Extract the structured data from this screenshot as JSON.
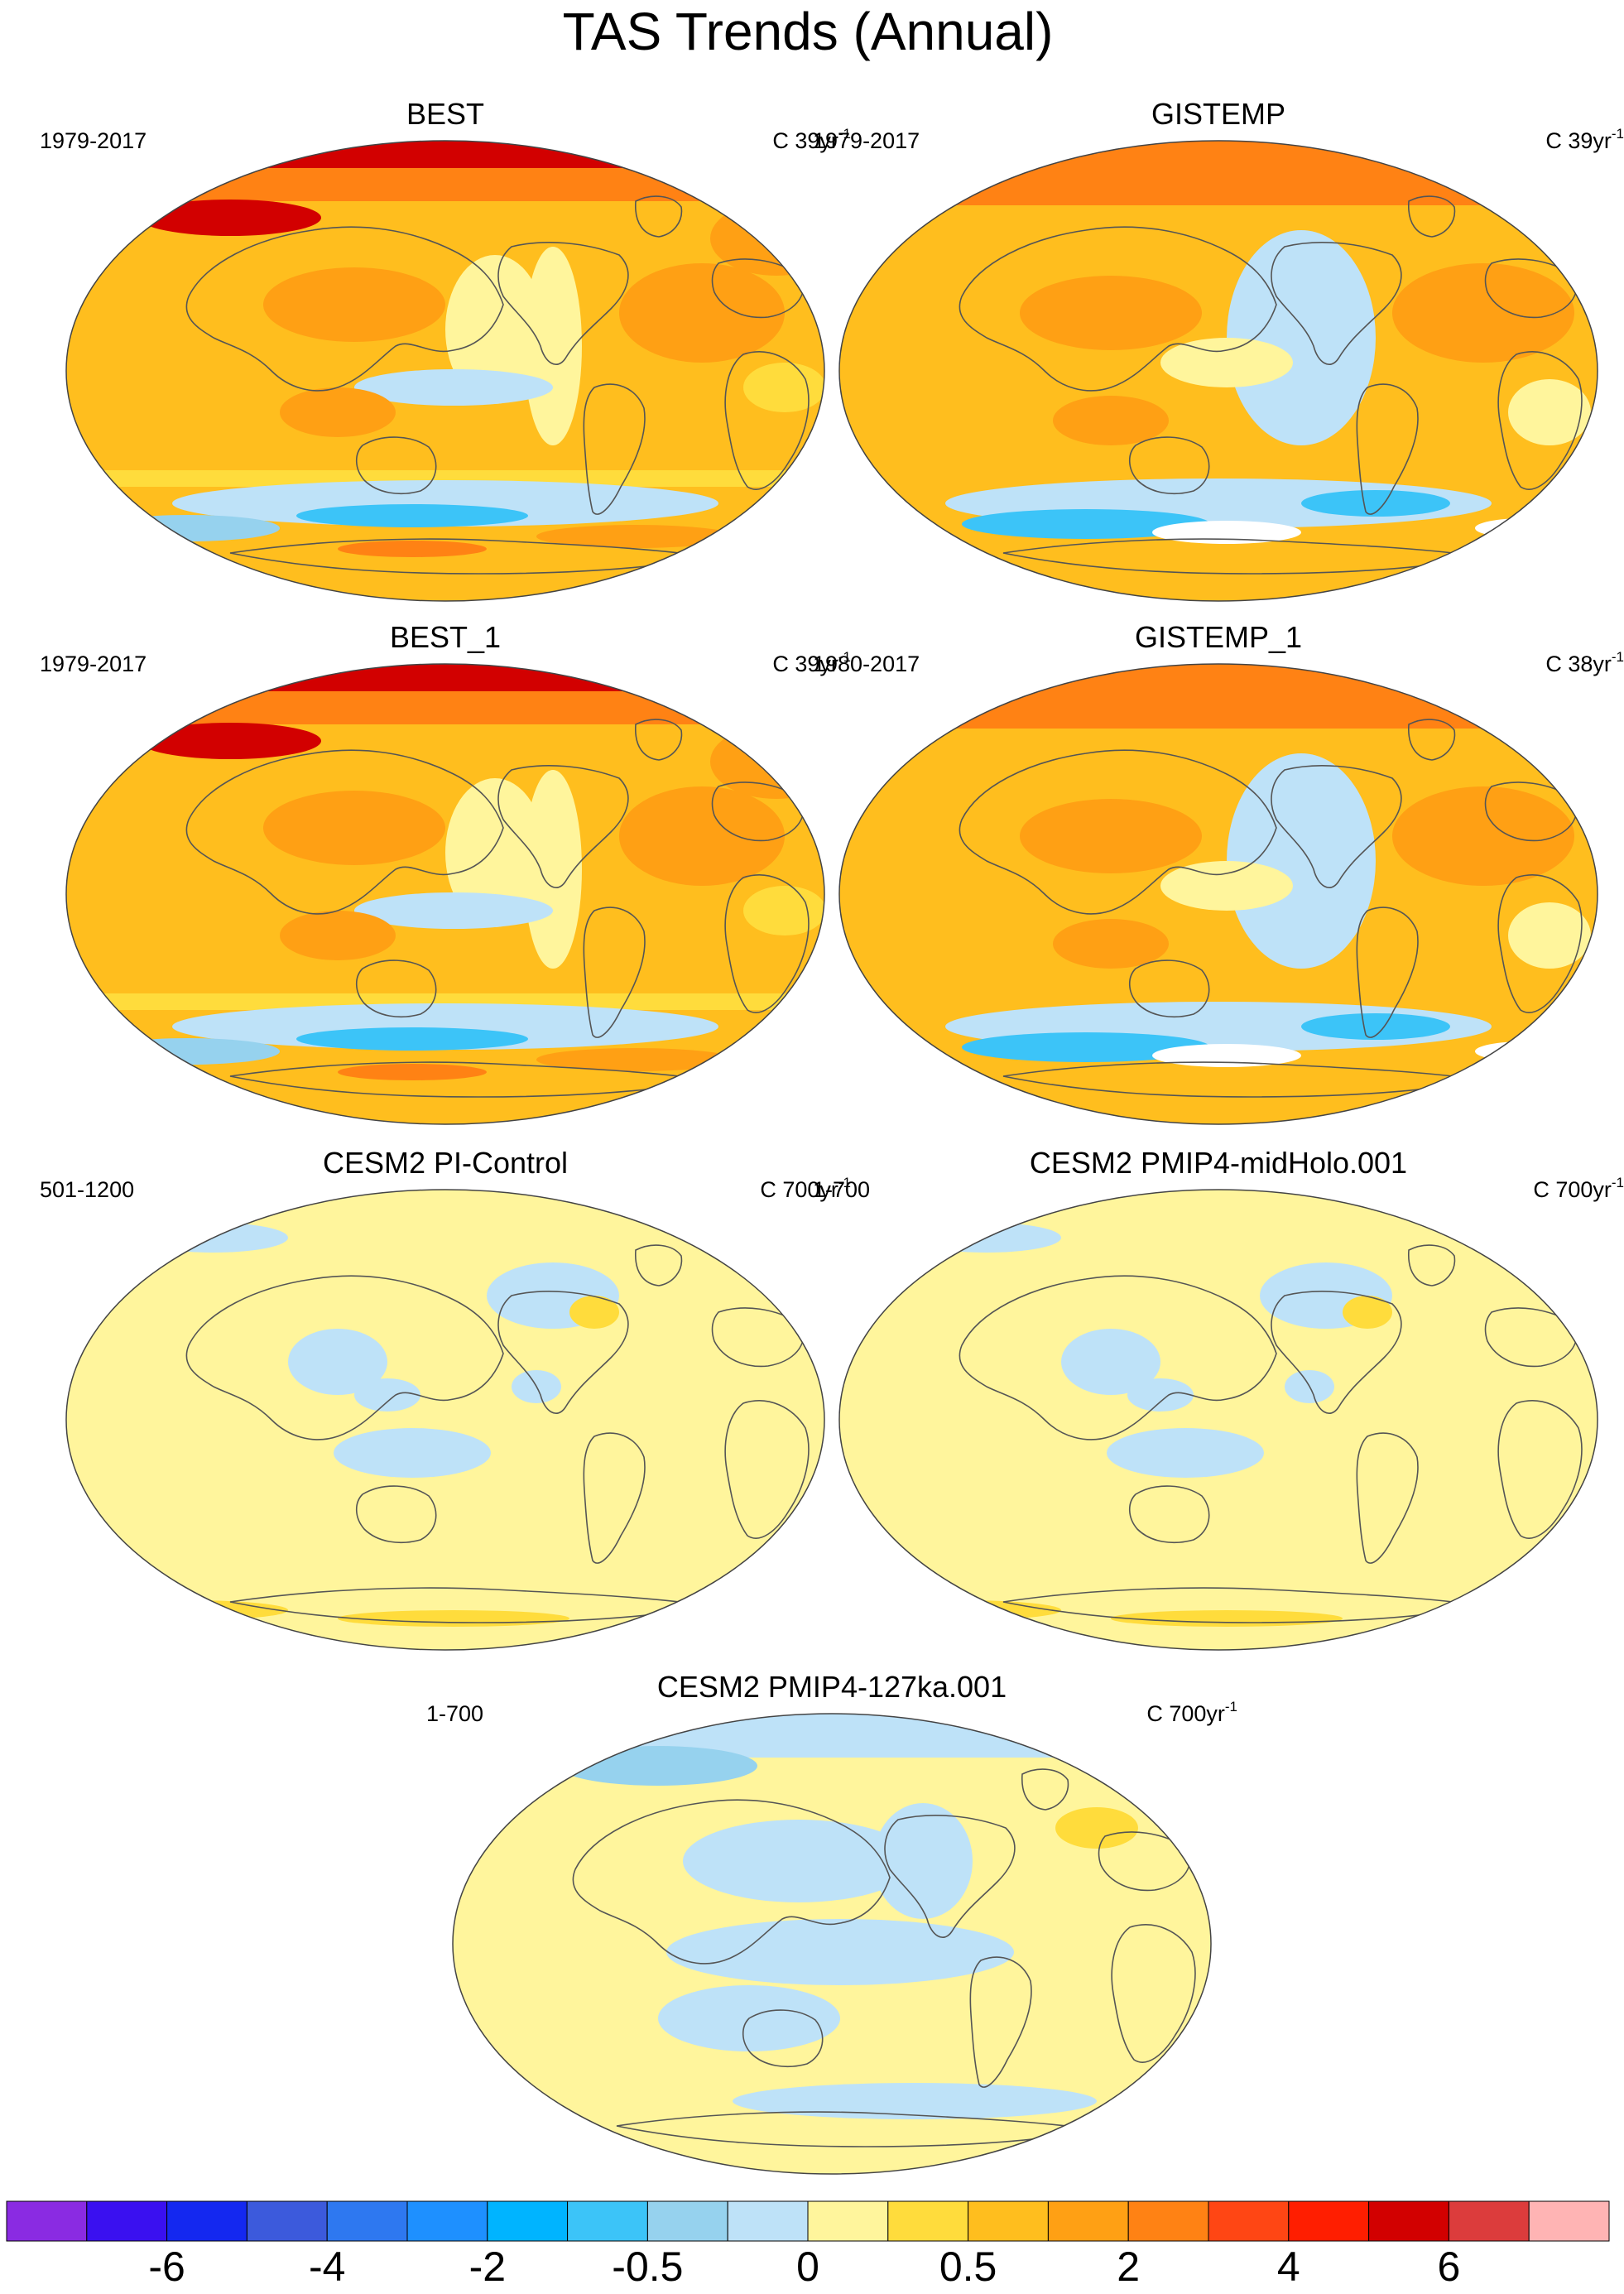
{
  "title": "TAS Trends (Annual)",
  "panels": [
    {
      "id": "best",
      "title": "BEST",
      "years": "1979-2017",
      "units_prefix": "C 39yr",
      "units_exp": "-1",
      "style": "obs"
    },
    {
      "id": "gistemp",
      "title": "GISTEMP",
      "years": "1979-2017",
      "units_prefix": "C 39yr",
      "units_exp": "-1",
      "style": "obs-gaps"
    },
    {
      "id": "best1",
      "title": "BEST_1",
      "years": "1979-2017",
      "units_prefix": "C 39yr",
      "units_exp": "-1",
      "style": "obs"
    },
    {
      "id": "gistemp1",
      "title": "GISTEMP_1",
      "years": "1980-2017",
      "units_prefix": "C 38yr",
      "units_exp": "-1",
      "style": "obs-gaps"
    },
    {
      "id": "picontrol",
      "title": "CESM2 PI-Control",
      "years": "501-1200",
      "units_prefix": "C 700yr",
      "units_exp": "-1",
      "style": "model"
    },
    {
      "id": "midholo",
      "title": "CESM2 PMIP4-midHolo.001",
      "years": "1-700",
      "units_prefix": "C 700yr",
      "units_exp": "-1",
      "style": "model"
    },
    {
      "id": "ka127",
      "title": "CESM2 PMIP4-127ka.001",
      "years": "1-700",
      "units_prefix": "C 700yr",
      "units_exp": "-1",
      "style": "model-cool"
    }
  ],
  "colorbar": {
    "colors": [
      "#8a2be2",
      "#3a10f0",
      "#1428f0",
      "#3c5adc",
      "#2e78f0",
      "#1e90ff",
      "#00b4ff",
      "#3cc4f8",
      "#96d2ee",
      "#bee2f8",
      "#fff59c",
      "#ffdc3c",
      "#ffbe1e",
      "#ffa014",
      "#ff8214",
      "#ff4614",
      "#ff1e00",
      "#d20000",
      "#dc3c3c",
      "#ffb4b4"
    ],
    "labels": [
      {
        "text": "-6",
        "boundary": 2
      },
      {
        "text": "-4",
        "boundary": 4
      },
      {
        "text": "-2",
        "boundary": 6
      },
      {
        "text": "-0.5",
        "boundary": 8
      },
      {
        "text": "0",
        "boundary": 10
      },
      {
        "text": "0.5",
        "boundary": 12
      },
      {
        "text": "2",
        "boundary": 14
      },
      {
        "text": "4",
        "boundary": 16
      },
      {
        "text": "6",
        "boundary": 18
      }
    ]
  }
}
